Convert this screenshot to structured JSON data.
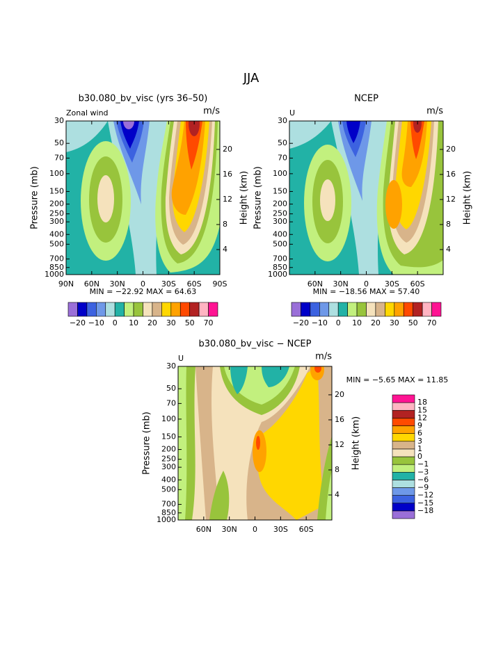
{
  "title": "JJA",
  "palette": [
    "#9a6fd8",
    "#0000c8",
    "#3c62e0",
    "#6e98e8",
    "#addfe0",
    "#22b2a6",
    "#c2f07e",
    "#98c43c",
    "#f5e2bc",
    "#d8b48a",
    "#ffd700",
    "#ffa200",
    "#ff4a00",
    "#b22222",
    "#ffb4c2",
    "#ff1493"
  ],
  "panels": [
    {
      "title": "b30.080_bv_visc (yrs 36–50)",
      "left_label": "Zonal wind",
      "units": "m/s",
      "y_label": "Pressure (mb)",
      "y2_label": "Height (km)",
      "pressure_ticks": [
        30,
        50,
        70,
        100,
        150,
        200,
        250,
        300,
        400,
        500,
        700,
        850,
        1000
      ],
      "height_ticks": [
        4,
        8,
        12,
        16,
        20
      ],
      "lat_ticks": [
        {
          "value": 90,
          "label": "90N"
        },
        {
          "value": 60,
          "label": "60N"
        },
        {
          "value": 30,
          "label": "30N"
        },
        {
          "value": 0,
          "label": "0"
        },
        {
          "value": -30,
          "label": "30S"
        },
        {
          "value": -60,
          "label": "60S"
        },
        {
          "value": -90,
          "label": "90S"
        }
      ],
      "stats": "MIN = −22.92   MAX =  64.63",
      "colorbar_labels": [
        "−20",
        "−10",
        "0",
        "10",
        "20",
        "30",
        "50",
        "70"
      ]
    },
    {
      "title": "NCEP",
      "left_label": "U",
      "units": "m/s",
      "y_label": "Pressure (mb)",
      "y2_label": "Height (km)",
      "pressure_ticks": [
        30,
        50,
        70,
        100,
        150,
        200,
        250,
        300,
        400,
        500,
        700,
        850,
        1000
      ],
      "height_ticks": [
        4,
        8,
        12,
        16,
        20
      ],
      "lat_ticks": [
        {
          "value": 60,
          "label": "60N"
        },
        {
          "value": 30,
          "label": "30N"
        },
        {
          "value": 0,
          "label": "0"
        },
        {
          "value": -30,
          "label": "30S"
        },
        {
          "value": -60,
          "label": "60S"
        }
      ],
      "stats": "MIN = −18.56   MAX =  57.40",
      "colorbar_labels": [
        "−20",
        "−10",
        "0",
        "10",
        "20",
        "30",
        "50",
        "70"
      ]
    },
    {
      "title": "b30.080_bv_visc − NCEP",
      "left_label": "U",
      "units": "m/s",
      "y_label": "Pressure (mb)",
      "y2_label": "Height (km)",
      "pressure_ticks": [
        30,
        50,
        70,
        100,
        150,
        200,
        250,
        300,
        400,
        500,
        700,
        850,
        1000
      ],
      "height_ticks": [
        4,
        8,
        12,
        16,
        20
      ],
      "lat_ticks": [
        {
          "value": 60,
          "label": "60N"
        },
        {
          "value": 30,
          "label": "30N"
        },
        {
          "value": 0,
          "label": "0"
        },
        {
          "value": -30,
          "label": "30S"
        },
        {
          "value": -60,
          "label": "60S"
        }
      ],
      "stats": "MIN =  −5.65   MAX =  11.85",
      "colorbar_labels": [
        "18",
        "15",
        "12",
        "9",
        "6",
        "3",
        "1",
        "0",
        "−1",
        "−3",
        "−6",
        "−9",
        "−12",
        "−15",
        "−18"
      ]
    }
  ]
}
